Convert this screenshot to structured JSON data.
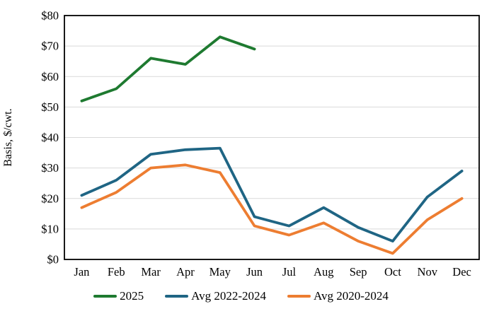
{
  "chart_data": {
    "type": "line",
    "title": "",
    "xlabel": "",
    "ylabel": "Basis, $/cwt.",
    "ylim": [
      0,
      80
    ],
    "ytick_step": 10,
    "ytick_prefix": "$",
    "grid": true,
    "legend_position": "bottom",
    "categories": [
      "Jan",
      "Feb",
      "Mar",
      "Apr",
      "May",
      "Jun",
      "Jul",
      "Aug",
      "Sep",
      "Oct",
      "Nov",
      "Dec"
    ],
    "series": [
      {
        "name": "2025",
        "color": "#1e7a30",
        "values": [
          52,
          56,
          66,
          64,
          73,
          69,
          null,
          null,
          null,
          null,
          null,
          null
        ]
      },
      {
        "name": "Avg 2022-2024",
        "color": "#1f6584",
        "values": [
          21,
          26,
          34.5,
          36,
          36.5,
          14,
          11,
          17,
          10.5,
          6,
          20.5,
          29
        ]
      },
      {
        "name": "Avg 2020-2024",
        "color": "#ed7d31",
        "values": [
          17,
          22,
          30,
          31,
          28.5,
          11,
          8,
          12,
          6,
          2,
          13,
          20
        ]
      }
    ]
  },
  "colors": {
    "gridline": "#d9d9d9",
    "axis_border": "#000000",
    "text": "#000000",
    "background": "#ffffff"
  }
}
